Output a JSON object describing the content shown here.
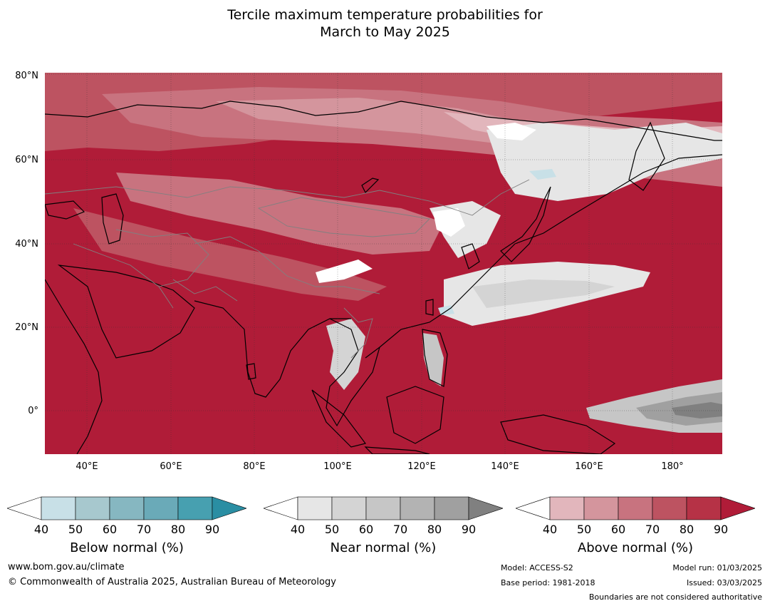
{
  "title": {
    "line1": "Tercile maximum temperature probabilities for",
    "line2": "March to May 2025"
  },
  "map": {
    "lat_labels": [
      "80°N",
      "60°N",
      "40°N",
      "20°N",
      "0°"
    ],
    "lon_labels": [
      "40°E",
      "60°E",
      "80°E",
      "100°E",
      "120°E",
      "140°E",
      "160°E",
      "180°"
    ],
    "colors": {
      "above": [
        "#ffffff",
        "#e2b6bc",
        "#d4959d",
        "#c8737f",
        "#bd5361",
        "#b63246",
        "#b01c38"
      ],
      "near": [
        "#ffffff",
        "#e6e6e6",
        "#d4d4d4",
        "#c6c6c6",
        "#b3b3b3",
        "#a0a0a0",
        "#808080"
      ],
      "below": [
        "#ffffff",
        "#c8e0e7",
        "#a7c8ce",
        "#86b7c1",
        "#6aaab8",
        "#47a0b0",
        "#2a8ea3"
      ],
      "coast": "#000000",
      "border": "#808080"
    }
  },
  "legends": [
    {
      "label": "Below normal (%)",
      "ticks": [
        "40",
        "50",
        "60",
        "70",
        "80",
        "90"
      ]
    },
    {
      "label": "Near normal (%)",
      "ticks": [
        "40",
        "50",
        "60",
        "70",
        "80",
        "90"
      ]
    },
    {
      "label": "Above normal (%)",
      "ticks": [
        "40",
        "50",
        "60",
        "70",
        "80",
        "90"
      ]
    }
  ],
  "footer": {
    "url": "www.bom.gov.au/climate",
    "copyright": "© Commonwealth of Australia 2025, Australian Bureau of Meteorology",
    "model": "Model: ACCESS-S2",
    "base_period": "Base period: 1981-2018",
    "model_run": "Model run: 01/03/2025",
    "issued": "Issued: 03/03/2025",
    "disclaimer": "Boundaries are not considered authoritative"
  }
}
